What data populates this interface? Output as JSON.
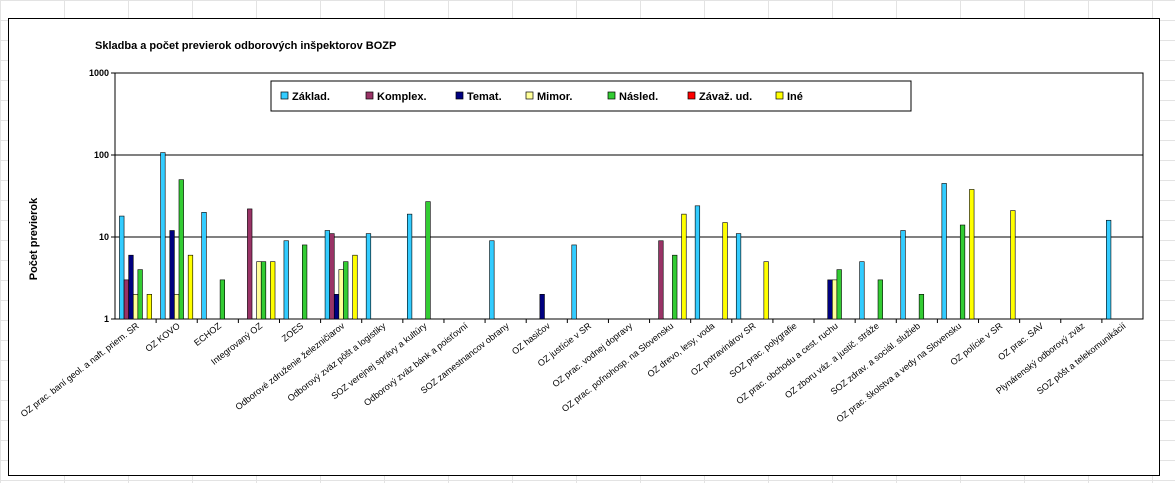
{
  "chart_data": {
    "type": "bar",
    "title": "Skladba a počet previerok odborových inšpektorov BOZP",
    "ylabel": "Počet previerok",
    "xlabel": "",
    "yscale": "log",
    "ylim": [
      1,
      1000
    ],
    "yticks": [
      "1",
      "10",
      "100",
      "1000"
    ],
    "grid": true,
    "legend_position": "top",
    "categories": [
      "OZ prac. baní geol. a naft. priem. SR",
      "OZ KOVO",
      "ECHOZ",
      "Integrovaný OZ",
      "ZOES",
      "Odborové združenie železničiarov",
      "Odborový zväz pôšt a logistiky",
      "SOZ verejnej správy a kultúry",
      "Odborový zväz bánk a poisťovní",
      "SOZ zamestnancov obrany",
      "OZ hasičov",
      "OZ justície v SR",
      "OZ prac. vodnej dopravy",
      "OZ prac. poľnohosp. na Slovensku",
      "OZ drevo, lesy, voda",
      "OZ potravinárov SR",
      "SOZ prac. polygrafie",
      "OZ prac. obchodu a cest. ruchu",
      "OZ zboru váz. a justič. stráže",
      "SOZ zdrav. a sociál. služieb",
      "OZ prac. školstva a vedy na Slovensku",
      "OZ polície v SR",
      "OZ prac. SAV",
      "Plynárenský odborový zväz",
      "SOZ pôšt a telekomunikácií"
    ],
    "series": [
      {
        "name": "Základ.",
        "color": "#33CCFF",
        "values": [
          18,
          107,
          20,
          null,
          9,
          12,
          11,
          19,
          null,
          9,
          null,
          8,
          null,
          null,
          24,
          11,
          null,
          null,
          5,
          12,
          45,
          null,
          null,
          null,
          16
        ]
      },
      {
        "name": "Komplex.",
        "color": "#993366",
        "values": [
          3,
          null,
          null,
          22,
          null,
          11,
          null,
          null,
          null,
          null,
          null,
          null,
          null,
          9,
          null,
          null,
          null,
          null,
          null,
          null,
          null,
          null,
          null,
          null,
          null
        ]
      },
      {
        "name": "Temat.",
        "color": "#000080",
        "values": [
          6,
          12,
          null,
          null,
          null,
          2,
          null,
          null,
          null,
          null,
          2,
          null,
          null,
          null,
          null,
          null,
          null,
          3,
          null,
          null,
          null,
          null,
          null,
          null,
          null
        ]
      },
      {
        "name": "Mimor.",
        "color": "#FFFF99",
        "values": [
          2,
          2,
          null,
          5,
          null,
          4,
          null,
          null,
          null,
          null,
          null,
          null,
          null,
          null,
          null,
          null,
          null,
          3,
          null,
          null,
          null,
          null,
          null,
          null,
          null
        ]
      },
      {
        "name": "Násled.",
        "color": "#33CC33",
        "values": [
          4,
          50,
          3,
          5,
          8,
          5,
          null,
          27,
          null,
          null,
          null,
          null,
          null,
          6,
          null,
          null,
          null,
          4,
          3,
          2,
          14,
          null,
          null,
          null,
          null
        ]
      },
      {
        "name": "Závaž. ud.",
        "color": "#FF0000",
        "values": [
          null,
          null,
          null,
          null,
          null,
          null,
          null,
          null,
          null,
          null,
          null,
          null,
          null,
          null,
          null,
          null,
          null,
          null,
          null,
          null,
          null,
          null,
          null,
          null,
          null
        ]
      },
      {
        "name": "Iné",
        "color": "#FFFF00",
        "values": [
          2,
          6,
          null,
          5,
          null,
          6,
          null,
          null,
          null,
          null,
          null,
          null,
          null,
          19,
          15,
          5,
          null,
          null,
          null,
          null,
          38,
          21,
          null,
          null,
          null
        ]
      }
    ]
  }
}
